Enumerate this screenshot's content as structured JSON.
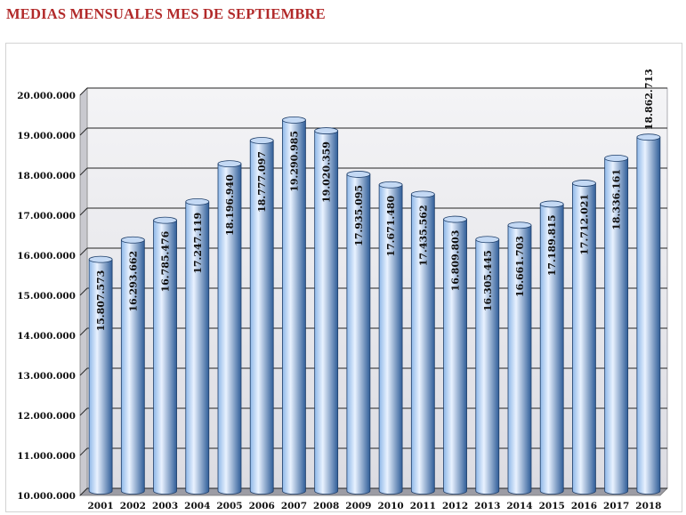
{
  "title": "MEDIAS MENSUALES MES DE SEPTIEMBRE",
  "colors": {
    "title": "#b22a2a",
    "bar_light": "#e9f2ff",
    "bar_mid": "#8fb8e8",
    "bar_dark": "#2f5d98",
    "bar_top": "#c4d9f4",
    "wall": "#e6e6ea",
    "grid": "#222222"
  },
  "chart_data": {
    "type": "bar",
    "title": "MEDIAS MENSUALES MES DE SEPTIEMBRE",
    "xlabel": "",
    "ylabel": "",
    "categories": [
      "2001",
      "2002",
      "2003",
      "2004",
      "2005",
      "2006",
      "2007",
      "2008",
      "2009",
      "2010",
      "2011",
      "2012",
      "2013",
      "2014",
      "2015",
      "2016",
      "2017",
      "2018"
    ],
    "values": [
      15807573,
      16293662,
      16785476,
      17247119,
      18196940,
      18777097,
      19290985,
      19020359,
      17935095,
      17671480,
      17435562,
      16809803,
      16305445,
      16661703,
      17189815,
      17712021,
      18336161,
      18862713
    ],
    "value_labels": [
      "15.807.573",
      "16.293.662",
      "16.785.476",
      "17.247.119",
      "18.196.940",
      "18.777.097",
      "19.290.985",
      "19.020.359",
      "17.935.095",
      "17.671.480",
      "17.435.562",
      "16.809.803",
      "16.305.445",
      "16.661.703",
      "17.189.815",
      "17.712.021",
      "18.336.161",
      "18.862.713"
    ],
    "ylim": [
      10000000,
      20000000
    ],
    "yticks": [
      10000000,
      11000000,
      12000000,
      13000000,
      14000000,
      15000000,
      16000000,
      17000000,
      18000000,
      19000000,
      20000000
    ],
    "ytick_labels": [
      "10.000.000",
      "11.000.000",
      "12.000.000",
      "13.000.000",
      "14.000.000",
      "15.000.000",
      "16.000.000",
      "17.000.000",
      "18.000.000",
      "19.000.000",
      "20.000.000"
    ],
    "grid": true,
    "legend": "none",
    "style": "3d-cylinder"
  }
}
